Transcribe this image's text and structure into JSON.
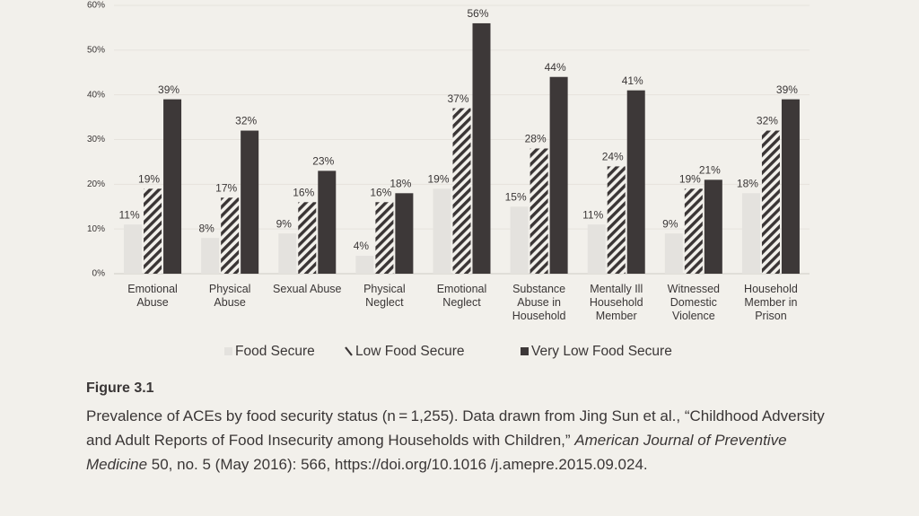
{
  "chart_data": {
    "type": "bar",
    "categories": [
      "Emotional\nAbuse",
      "Physical\nAbuse",
      "Sexual Abuse",
      "Physical\nNeglect",
      "Emotional\nNeglect",
      "Substance\nAbuse in\nHousehold",
      "Mentally Ill\nHousehold\nMember",
      "Witnessed\nDomestic\nViolence",
      "Household\nMember in\nPrison"
    ],
    "series": [
      {
        "name": "Food Secure",
        "color": "#e4e2de",
        "pattern": "solid",
        "values": [
          11,
          8,
          9,
          4,
          19,
          15,
          11,
          9,
          18
        ],
        "value_labels": [
          "11%",
          "8%",
          "9%",
          "4%",
          "19%",
          "15%",
          "11%",
          "9%",
          "18%"
        ]
      },
      {
        "name": "Low Food Secure",
        "color": "#3a3535",
        "pattern": "hatch",
        "values": [
          19,
          17,
          16,
          16,
          37,
          28,
          24,
          19,
          32
        ],
        "value_labels": [
          "19%",
          "17%",
          "16%",
          "16%",
          "37%",
          "28%",
          "24%",
          "19%",
          "32%"
        ]
      },
      {
        "name": "Very Low Food Secure",
        "color": "#3d3838",
        "pattern": "solid",
        "values": [
          39,
          32,
          23,
          18,
          56,
          44,
          41,
          21,
          39
        ],
        "value_labels": [
          "39%",
          "32%",
          "23%",
          "18%",
          "56%",
          "44%",
          "41%",
          "21%",
          "39%"
        ]
      }
    ],
    "ylim": [
      0,
      60
    ],
    "yticks": [
      {
        "value": 0,
        "label": "0%"
      },
      {
        "value": 10,
        "label": "10%"
      },
      {
        "value": 20,
        "label": "20%"
      },
      {
        "value": 30,
        "label": "30%"
      },
      {
        "value": 40,
        "label": "40%"
      },
      {
        "value": 50,
        "label": "50%"
      },
      {
        "value": 60,
        "label": "60%"
      }
    ],
    "grid": true,
    "legend": "bottom"
  },
  "caption": {
    "label": "Figure 3.1",
    "text_before": "Prevalence of ACEs by food security status (n = 1,255). Data drawn from Jing Sun et al., “Childhood Adversity and Adult Reports of Food Insecurity among Households with Children,” ",
    "journal": "American Journal of Preventive Medicine",
    "text_after": " 50, no. 5 (May 2016): 566, https://doi.org/10.1016 /j.amepre.2015.09.024."
  }
}
